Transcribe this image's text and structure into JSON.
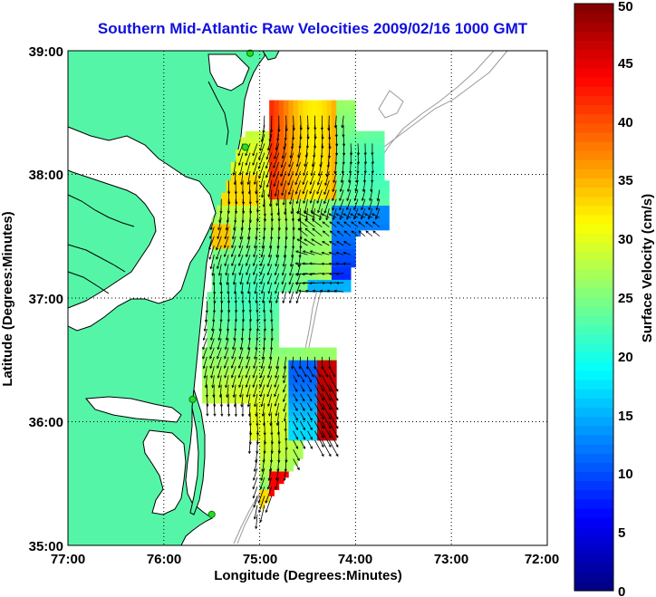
{
  "title": "Southern Mid-Atlantic Raw Velocities 2009/02/16 1000 GMT",
  "axes": {
    "xlabel": "Longitude (Degrees:Minutes)",
    "ylabel": "Latitude (Degrees:Minutes)",
    "xticks": [
      "77:00",
      "76:00",
      "75:00",
      "74:00",
      "73:00",
      "72:00"
    ],
    "yticks": [
      "39:00",
      "38:00",
      "37:00",
      "36:00",
      "35:00"
    ]
  },
  "colorbar": {
    "label": "Surface Velocity (cm/s)",
    "ticks": [
      "0",
      "5",
      "10",
      "15",
      "20",
      "25",
      "30",
      "35",
      "40",
      "45",
      "50"
    ],
    "min": 0,
    "max": 50
  },
  "colors": {
    "land": "#55f5a8",
    "coast": "#000000",
    "title": "#1010e0",
    "station": "#22dd22",
    "bathymetry": "#9a9a9a"
  },
  "chart_data": {
    "type": "heatmap",
    "title": "Southern Mid-Atlantic Raw Velocities 2009/02/16 1000 GMT",
    "xlabel": "Longitude (Degrees:Minutes)",
    "ylabel": "Latitude (Degrees:Minutes)",
    "xlim": [
      -77,
      -72
    ],
    "ylim": [
      35,
      39
    ],
    "zlabel": "Surface Velocity (cm/s)",
    "zlim": [
      0,
      50
    ],
    "grid": true,
    "stations": [
      {
        "lon": -75.1,
        "lat": 38.98
      },
      {
        "lon": -75.15,
        "lat": 38.22
      },
      {
        "lon": -75.7,
        "lat": 36.18
      },
      {
        "lon": -75.5,
        "lat": 35.25
      }
    ]
  }
}
